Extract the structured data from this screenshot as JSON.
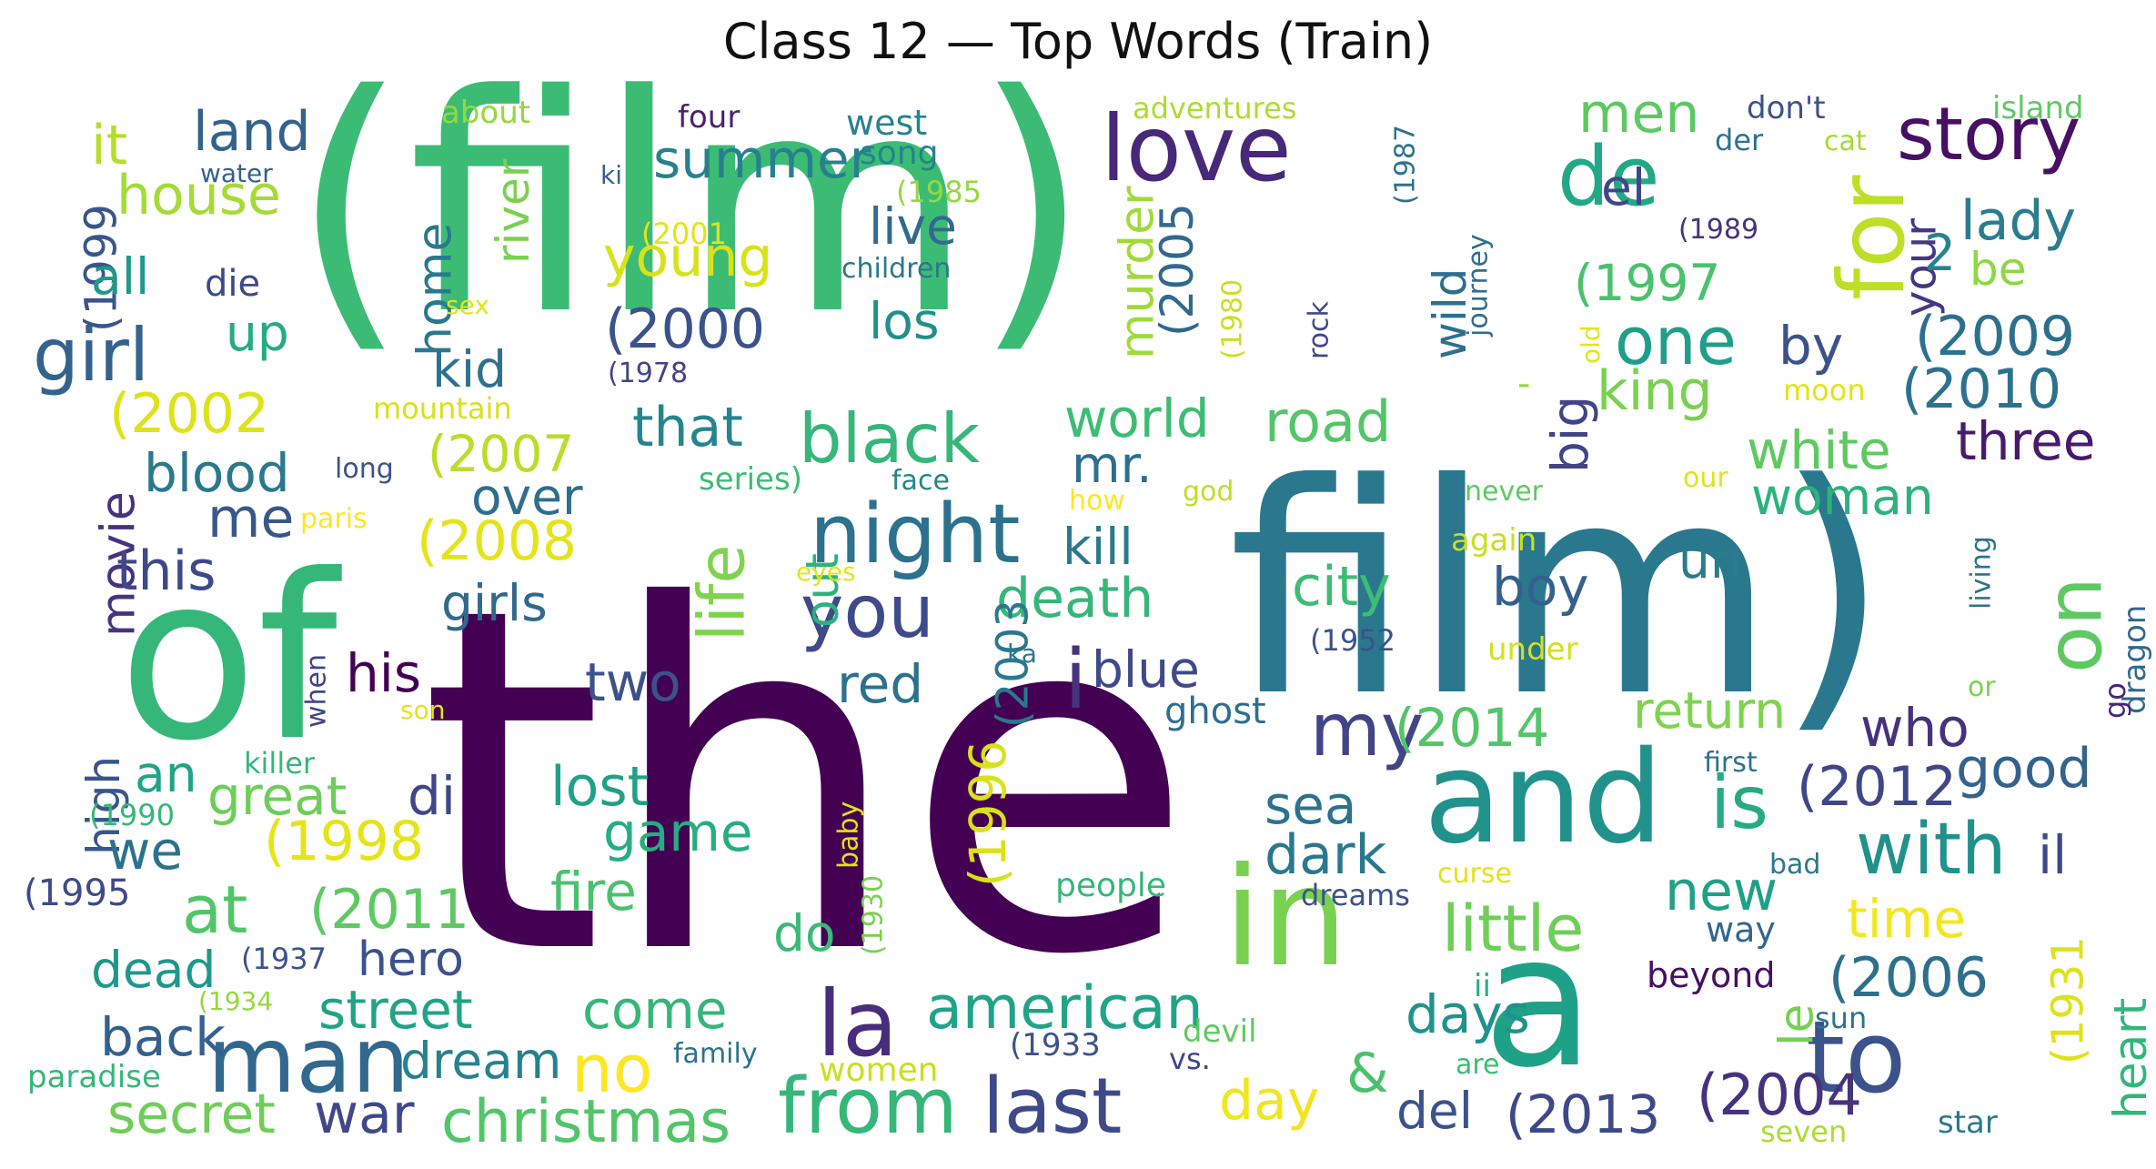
{
  "title": "Class 12 — Top Words (Train)",
  "palette": "viridis",
  "words": [
    {
      "text": "the",
      "color": "#440154"
    },
    {
      "text": "(film)",
      "color": "#3cbb75"
    },
    {
      "text": "film)",
      "color": "#2a788e"
    },
    {
      "text": "of",
      "color": "#35b779"
    },
    {
      "text": "and",
      "color": "#21918c"
    },
    {
      "text": "a",
      "color": "#1fa187"
    },
    {
      "text": "in",
      "color": "#7ad151"
    },
    {
      "text": "to",
      "color": "#3b528b"
    },
    {
      "text": "love",
      "color": "#482878"
    },
    {
      "text": "night",
      "color": "#2c728e"
    },
    {
      "text": "for",
      "color": "#bddf26"
    },
    {
      "text": "man",
      "color": "#31688e"
    },
    {
      "text": "la",
      "color": "#472d7b"
    },
    {
      "text": "de",
      "color": "#22a884"
    },
    {
      "text": "story",
      "color": "#471063"
    },
    {
      "text": "on",
      "color": "#5ec962"
    },
    {
      "text": "from",
      "color": "#35b779"
    },
    {
      "text": "last",
      "color": "#3e4989"
    },
    {
      "text": "you",
      "color": "#3e4a89"
    },
    {
      "text": "my",
      "color": "#414487"
    },
    {
      "text": "with",
      "color": "#21918c"
    },
    {
      "text": "is",
      "color": "#25ab82"
    },
    {
      "text": "life",
      "color": "#7fd34e"
    },
    {
      "text": "black",
      "color": "#35b779"
    },
    {
      "text": "girl",
      "color": "#33638d"
    },
    {
      "text": "one",
      "color": "#1f9e89"
    },
    {
      "text": "little",
      "color": "#6ece58"
    },
    {
      "text": "american",
      "color": "#20a486"
    },
    {
      "text": "no",
      "color": "#fde725"
    },
    {
      "text": "christmas",
      "color": "#52c569"
    },
    {
      "text": "i",
      "color": "#46337e"
    },
    {
      "text": "men",
      "color": "#5ec962"
    },
    {
      "text": "young",
      "color": "#d8e219"
    },
    {
      "text": "lady",
      "color": "#287d8e"
    },
    {
      "text": "house",
      "color": "#a5db36"
    },
    {
      "text": "land",
      "color": "#33638d"
    },
    {
      "text": "summer",
      "color": "#27808e"
    },
    {
      "text": "it",
      "color": "#b5de2b"
    },
    {
      "text": "(1999",
      "color": "#39568c"
    },
    {
      "text": "el",
      "color": "#404688"
    },
    {
      "text": "all",
      "color": "#1f988b"
    },
    {
      "text": "up",
      "color": "#25ab82"
    },
    {
      "text": "die",
      "color": "#3e4989"
    },
    {
      "text": "home",
      "color": "#2a788e"
    },
    {
      "text": "river",
      "color": "#7ad151"
    },
    {
      "text": "murder",
      "color": "#a0da39"
    },
    {
      "text": "(2005",
      "color": "#31688e"
    },
    {
      "text": "wild",
      "color": "#2d708e"
    },
    {
      "text": "(1997",
      "color": "#4ac16d"
    },
    {
      "text": "(2009",
      "color": "#2d708e"
    },
    {
      "text": "your",
      "color": "#453781"
    },
    {
      "text": "2",
      "color": "#26828e"
    },
    {
      "text": "be",
      "color": "#8fd744"
    },
    {
      "text": "by",
      "color": "#3b528b"
    },
    {
      "text": "king",
      "color": "#7ad151"
    },
    {
      "text": "(2010",
      "color": "#2c728e"
    },
    {
      "text": "three",
      "color": "#481a6c"
    },
    {
      "text": "white",
      "color": "#5ec962"
    },
    {
      "text": "woman",
      "color": "#2db27d"
    },
    {
      "text": "kid",
      "color": "#2c728e"
    },
    {
      "text": "(2000",
      "color": "#3b528b"
    },
    {
      "text": "los",
      "color": "#218f8d"
    },
    {
      "text": "live",
      "color": "#306a8e"
    },
    {
      "text": "(2002",
      "color": "#dde318"
    },
    {
      "text": "that",
      "color": "#25858e"
    },
    {
      "text": "world",
      "color": "#3dbc74"
    },
    {
      "text": "road",
      "color": "#54c568"
    },
    {
      "text": "(2007",
      "color": "#bade28"
    },
    {
      "text": "mr.",
      "color": "#2e6f8e"
    },
    {
      "text": "big",
      "color": "#414487"
    },
    {
      "text": "blood",
      "color": "#2a788e"
    },
    {
      "text": "movie",
      "color": "#46337e"
    },
    {
      "text": "me",
      "color": "#38588c"
    },
    {
      "text": "over",
      "color": "#2e6e8e"
    },
    {
      "text": "out",
      "color": "#2db27d"
    },
    {
      "text": "(2008",
      "color": "#e5e419"
    },
    {
      "text": "this",
      "color": "#3f4889"
    },
    {
      "text": "kill",
      "color": "#2a788e"
    },
    {
      "text": "girls",
      "color": "#306a8e"
    },
    {
      "text": "death",
      "color": "#35b779"
    },
    {
      "text": "city",
      "color": "#3dbc74"
    },
    {
      "text": "boy",
      "color": "#34608d"
    },
    {
      "text": "un",
      "color": "#287c8e"
    },
    {
      "text": "(2003",
      "color": "#2a788e"
    },
    {
      "text": "his",
      "color": "#440154"
    },
    {
      "text": "two",
      "color": "#3b528b"
    },
    {
      "text": "red",
      "color": "#2c728e"
    },
    {
      "text": "blue",
      "color": "#3e4a89"
    },
    {
      "text": "return",
      "color": "#7fd34e"
    },
    {
      "text": "ghost",
      "color": "#2e6e8e"
    },
    {
      "text": "who",
      "color": "#46327e"
    },
    {
      "text": "(2014",
      "color": "#54c568"
    },
    {
      "text": "high",
      "color": "#39568c"
    },
    {
      "text": "an",
      "color": "#20a486"
    },
    {
      "text": "great",
      "color": "#6ece58"
    },
    {
      "text": "di",
      "color": "#3f4788"
    },
    {
      "text": "lost",
      "color": "#1fa187"
    },
    {
      "text": "(2012",
      "color": "#3f4788"
    },
    {
      "text": "good",
      "color": "#33638d"
    },
    {
      "text": "sea",
      "color": "#2c728e"
    },
    {
      "text": "we",
      "color": "#2c728e"
    },
    {
      "text": "(1998",
      "color": "#e5e419"
    },
    {
      "text": "game",
      "color": "#27ad81"
    },
    {
      "text": "(1996",
      "color": "#d8e219"
    },
    {
      "text": "dark",
      "color": "#2a788e"
    },
    {
      "text": "new",
      "color": "#1fa187"
    },
    {
      "text": "il",
      "color": "#3e4989"
    },
    {
      "text": "at",
      "color": "#52c569"
    },
    {
      "text": "(2011",
      "color": "#5ec962"
    },
    {
      "text": "fire",
      "color": "#4ac16d"
    },
    {
      "text": "do",
      "color": "#3aba76"
    },
    {
      "text": "time",
      "color": "#f4e61e"
    },
    {
      "text": "(2006",
      "color": "#2d708e"
    },
    {
      "text": "(1931",
      "color": "#dde318"
    },
    {
      "text": "heart",
      "color": "#32b67a"
    },
    {
      "text": "dead",
      "color": "#1f988b"
    },
    {
      "text": "hero",
      "color": "#3b528b"
    },
    {
      "text": "street",
      "color": "#20a386"
    },
    {
      "text": "come",
      "color": "#35b779"
    },
    {
      "text": "days",
      "color": "#20928c"
    },
    {
      "text": "le",
      "color": "#75d054"
    },
    {
      "text": "back",
      "color": "#34608d"
    },
    {
      "text": "dream",
      "color": "#26828e"
    },
    {
      "text": "&",
      "color": "#4ac16d"
    },
    {
      "text": "day",
      "color": "#f1e51d"
    },
    {
      "text": "del",
      "color": "#3b528b"
    },
    {
      "text": "(2013",
      "color": "#3e4989"
    },
    {
      "text": "(2004",
      "color": "#46337e"
    },
    {
      "text": "secret",
      "color": "#6ece58"
    },
    {
      "text": "war",
      "color": "#3f4889"
    },
    {
      "text": "about",
      "color": "#95d840"
    },
    {
      "text": "water",
      "color": "#35608d"
    },
    {
      "text": "four",
      "color": "#482173"
    },
    {
      "text": "west",
      "color": "#25838e"
    },
    {
      "text": "song",
      "color": "#26828e"
    },
    {
      "text": "ki",
      "color": "#35608d"
    },
    {
      "text": "(1985",
      "color": "#95d840"
    },
    {
      "text": "adventures",
      "color": "#addc30"
    },
    {
      "text": "(1987",
      "color": "#2c728e"
    },
    {
      "text": "don't",
      "color": "#3b528b"
    },
    {
      "text": "cat",
      "color": "#a5db36"
    },
    {
      "text": "der",
      "color": "#2c728e"
    },
    {
      "text": "island",
      "color": "#5ec962"
    },
    {
      "text": "(1989",
      "color": "#46337e"
    },
    {
      "text": "(2001",
      "color": "#e2e418"
    },
    {
      "text": "children",
      "color": "#2a788e"
    },
    {
      "text": "journey",
      "color": "#2e6e8e"
    },
    {
      "text": "old",
      "color": "#e7e419"
    },
    {
      "text": "(1980",
      "color": "#cae11f"
    },
    {
      "text": "rock",
      "color": "#3f4889"
    },
    {
      "text": "sex",
      "color": "#e2e418"
    },
    {
      "text": "(1978",
      "color": "#414487"
    },
    {
      "text": "moon",
      "color": "#e2e418"
    },
    {
      "text": "mountain",
      "color": "#d8e219"
    },
    {
      "text": "-",
      "color": "#95d840"
    },
    {
      "text": "long",
      "color": "#3b528b"
    },
    {
      "text": "series)",
      "color": "#3dbc74"
    },
    {
      "text": "face",
      "color": "#25838e"
    },
    {
      "text": "how",
      "color": "#fde725"
    },
    {
      "text": "god",
      "color": "#bddf26"
    },
    {
      "text": "never",
      "color": "#5ec962"
    },
    {
      "text": "our",
      "color": "#e2e418"
    },
    {
      "text": "paris",
      "color": "#fde725"
    },
    {
      "text": "again",
      "color": "#c8e020"
    },
    {
      "text": "living",
      "color": "#2c728e"
    },
    {
      "text": "eyes",
      "color": "#e5e419"
    },
    {
      "text": "dragon",
      "color": "#31688e"
    },
    {
      "text": "(1952",
      "color": "#3b528b"
    },
    {
      "text": "under",
      "color": "#d2e21b"
    },
    {
      "text": "ka",
      "color": "#2a788e"
    },
    {
      "text": "or",
      "color": "#7ad151"
    },
    {
      "text": "when",
      "color": "#414487"
    },
    {
      "text": "go",
      "color": "#482677"
    },
    {
      "text": "son",
      "color": "#e5e419"
    },
    {
      "text": "killer",
      "color": "#35b779"
    },
    {
      "text": "first",
      "color": "#2c728e"
    },
    {
      "text": "(1990",
      "color": "#35b779"
    },
    {
      "text": "baby",
      "color": "#e2e418"
    },
    {
      "text": "(1930",
      "color": "#7ad151"
    },
    {
      "text": "people",
      "color": "#35b779"
    },
    {
      "text": "curse",
      "color": "#e2e418"
    },
    {
      "text": "bad",
      "color": "#2a788e"
    },
    {
      "text": "dreams",
      "color": "#3b528b"
    },
    {
      "text": "(1995",
      "color": "#3e4a89"
    },
    {
      "text": "(1937",
      "color": "#3b528b"
    },
    {
      "text": "way",
      "color": "#31688e"
    },
    {
      "text": "beyond",
      "color": "#471063"
    },
    {
      "text": "ii",
      "color": "#29af7f"
    },
    {
      "text": "(1934",
      "color": "#95d840"
    },
    {
      "text": "devil",
      "color": "#5ec962"
    },
    {
      "text": "(1933",
      "color": "#3b528b"
    },
    {
      "text": "sun",
      "color": "#2c728e"
    },
    {
      "text": "family",
      "color": "#2c728e"
    },
    {
      "text": "vs.",
      "color": "#414487"
    },
    {
      "text": "are",
      "color": "#3dbc74"
    },
    {
      "text": "women",
      "color": "#c8e020"
    },
    {
      "text": "paradise",
      "color": "#35b779"
    },
    {
      "text": "seven",
      "color": "#addc30"
    },
    {
      "text": "star",
      "color": "#2a788e"
    }
  ]
}
